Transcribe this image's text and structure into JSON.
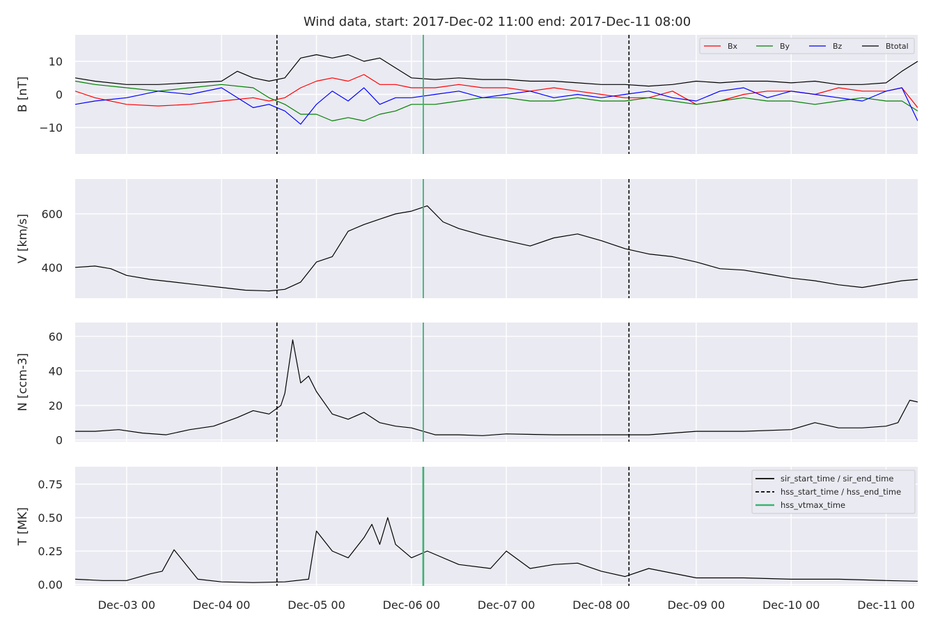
{
  "title": "Wind data, start: 2017-Dec-02 11:00  end: 2017-Dec-11 08:00",
  "time_range": {
    "start": "2017-12-02T11:00",
    "end": "2017-12-11T08:00"
  },
  "x_ticks": [
    "Dec-03 00",
    "Dec-04 00",
    "Dec-05 00",
    "Dec-06 00",
    "Dec-07 00",
    "Dec-08 00",
    "Dec-09 00",
    "Dec-10 00",
    "Dec-11 00"
  ],
  "colors": {
    "panel_bg": "#eaeaf2",
    "grid": "#ffffff",
    "bx": "#ff0000",
    "by": "#008000",
    "bz": "#0000ff",
    "btotal": "#000000",
    "vtmax": "#3cb371",
    "event": "#000000"
  },
  "legend_b": [
    "Bx",
    "By",
    "Bz",
    "Btotal"
  ],
  "legend_events": [
    "sir_start_time / sir_end_time",
    "hss_start_time / hss_end_time",
    "hss_vtmax_time"
  ],
  "chart_data": [
    {
      "type": "line",
      "ylabel": "B [nT]",
      "ylim": [
        -18,
        18
      ],
      "yticks": [
        -10,
        0,
        10
      ],
      "ytick_labels": [
        "−10",
        "0",
        "10"
      ],
      "grid": true,
      "legend_position": "top-right",
      "series": [
        {
          "name": "Bx",
          "t": [
            "2017-12-02T11:00",
            "2017-12-02T16:00",
            "2017-12-03T00:00",
            "2017-12-03T08:00",
            "2017-12-03T16:00",
            "2017-12-04T00:00",
            "2017-12-04T08:00",
            "2017-12-04T12:00",
            "2017-12-04T16:00",
            "2017-12-04T20:00",
            "2017-12-05T00:00",
            "2017-12-05T04:00",
            "2017-12-05T08:00",
            "2017-12-05T12:00",
            "2017-12-05T16:00",
            "2017-12-05T20:00",
            "2017-12-06T00:00",
            "2017-12-06T06:00",
            "2017-12-06T12:00",
            "2017-12-06T18:00",
            "2017-12-07T00:00",
            "2017-12-07T06:00",
            "2017-12-07T12:00",
            "2017-12-07T18:00",
            "2017-12-08T00:00",
            "2017-12-08T06:00",
            "2017-12-08T12:00",
            "2017-12-08T18:00",
            "2017-12-09T00:00",
            "2017-12-09T06:00",
            "2017-12-09T12:00",
            "2017-12-09T18:00",
            "2017-12-10T00:00",
            "2017-12-10T06:00",
            "2017-12-10T12:00",
            "2017-12-10T18:00",
            "2017-12-11T00:00",
            "2017-12-11T04:00",
            "2017-12-11T08:00"
          ],
          "values": [
            1,
            -1,
            -3,
            -3.5,
            -3,
            -2,
            -1,
            -2,
            -1,
            2,
            4,
            5,
            4,
            6,
            3,
            3,
            2,
            2,
            3,
            2,
            2,
            1,
            2,
            1,
            0,
            -1,
            -1,
            1,
            -3,
            -2,
            0,
            1,
            1,
            0,
            2,
            1,
            1,
            2,
            -4
          ]
        },
        {
          "name": "By",
          "t": [
            "2017-12-02T11:00",
            "2017-12-02T16:00",
            "2017-12-03T00:00",
            "2017-12-03T08:00",
            "2017-12-03T16:00",
            "2017-12-04T00:00",
            "2017-12-04T08:00",
            "2017-12-04T12:00",
            "2017-12-04T16:00",
            "2017-12-04T20:00",
            "2017-12-05T00:00",
            "2017-12-05T04:00",
            "2017-12-05T08:00",
            "2017-12-05T12:00",
            "2017-12-05T16:00",
            "2017-12-05T20:00",
            "2017-12-06T00:00",
            "2017-12-06T06:00",
            "2017-12-06T12:00",
            "2017-12-06T18:00",
            "2017-12-07T00:00",
            "2017-12-07T06:00",
            "2017-12-07T12:00",
            "2017-12-07T18:00",
            "2017-12-08T00:00",
            "2017-12-08T06:00",
            "2017-12-08T12:00",
            "2017-12-08T18:00",
            "2017-12-09T00:00",
            "2017-12-09T06:00",
            "2017-12-09T12:00",
            "2017-12-09T18:00",
            "2017-12-10T00:00",
            "2017-12-10T06:00",
            "2017-12-10T12:00",
            "2017-12-10T18:00",
            "2017-12-11T00:00",
            "2017-12-11T04:00",
            "2017-12-11T08:00"
          ],
          "values": [
            4,
            3,
            2,
            1,
            2,
            3,
            2,
            -1,
            -3,
            -6,
            -6,
            -8,
            -7,
            -8,
            -6,
            -5,
            -3,
            -3,
            -2,
            -1,
            -1,
            -2,
            -2,
            -1,
            -2,
            -2,
            -1,
            -2,
            -3,
            -2,
            -1,
            -2,
            -2,
            -3,
            -2,
            -1,
            -2,
            -2,
            -5
          ]
        },
        {
          "name": "Bz",
          "t": [
            "2017-12-02T11:00",
            "2017-12-02T16:00",
            "2017-12-03T00:00",
            "2017-12-03T08:00",
            "2017-12-03T16:00",
            "2017-12-04T00:00",
            "2017-12-04T08:00",
            "2017-12-04T12:00",
            "2017-12-04T16:00",
            "2017-12-04T20:00",
            "2017-12-05T00:00",
            "2017-12-05T04:00",
            "2017-12-05T08:00",
            "2017-12-05T12:00",
            "2017-12-05T16:00",
            "2017-12-05T20:00",
            "2017-12-06T00:00",
            "2017-12-06T06:00",
            "2017-12-06T12:00",
            "2017-12-06T18:00",
            "2017-12-07T00:00",
            "2017-12-07T06:00",
            "2017-12-07T12:00",
            "2017-12-07T18:00",
            "2017-12-08T00:00",
            "2017-12-08T06:00",
            "2017-12-08T12:00",
            "2017-12-08T18:00",
            "2017-12-09T00:00",
            "2017-12-09T06:00",
            "2017-12-09T12:00",
            "2017-12-09T18:00",
            "2017-12-10T00:00",
            "2017-12-10T06:00",
            "2017-12-10T12:00",
            "2017-12-10T18:00",
            "2017-12-11T00:00",
            "2017-12-11T04:00",
            "2017-12-11T08:00"
          ],
          "values": [
            -3,
            -2,
            -1,
            1,
            0,
            2,
            -4,
            -3,
            -5,
            -9,
            -3,
            1,
            -2,
            2,
            -3,
            -1,
            -1,
            0,
            1,
            -1,
            0,
            1,
            -1,
            0,
            -1,
            0,
            1,
            -1,
            -2,
            1,
            2,
            -1,
            1,
            0,
            -1,
            -2,
            1,
            2,
            -8
          ]
        },
        {
          "name": "Btotal",
          "t": [
            "2017-12-02T11:00",
            "2017-12-02T16:00",
            "2017-12-03T00:00",
            "2017-12-03T08:00",
            "2017-12-03T16:00",
            "2017-12-04T00:00",
            "2017-12-04T04:00",
            "2017-12-04T08:00",
            "2017-12-04T12:00",
            "2017-12-04T16:00",
            "2017-12-04T20:00",
            "2017-12-05T00:00",
            "2017-12-05T04:00",
            "2017-12-05T08:00",
            "2017-12-05T12:00",
            "2017-12-05T16:00",
            "2017-12-05T20:00",
            "2017-12-06T00:00",
            "2017-12-06T06:00",
            "2017-12-06T12:00",
            "2017-12-06T18:00",
            "2017-12-07T00:00",
            "2017-12-07T06:00",
            "2017-12-07T12:00",
            "2017-12-07T18:00",
            "2017-12-08T00:00",
            "2017-12-08T06:00",
            "2017-12-08T12:00",
            "2017-12-08T18:00",
            "2017-12-09T00:00",
            "2017-12-09T06:00",
            "2017-12-09T12:00",
            "2017-12-09T18:00",
            "2017-12-10T00:00",
            "2017-12-10T06:00",
            "2017-12-10T12:00",
            "2017-12-10T18:00",
            "2017-12-11T00:00",
            "2017-12-11T04:00",
            "2017-12-11T08:00"
          ],
          "values": [
            5,
            4,
            3,
            3,
            3.5,
            4,
            7,
            5,
            4,
            5,
            11,
            12,
            11,
            12,
            10,
            11,
            8,
            5,
            4.5,
            5,
            4.5,
            4.5,
            4,
            4,
            3.5,
            3,
            3,
            2.5,
            3,
            4,
            3.5,
            4,
            4,
            3.5,
            4,
            3,
            3,
            3.5,
            7,
            10
          ]
        }
      ]
    },
    {
      "type": "line",
      "ylabel": "V [km/s]",
      "ylim": [
        285,
        730
      ],
      "yticks": [
        400,
        600
      ],
      "grid": true,
      "series": [
        {
          "name": "V",
          "t": [
            "2017-12-02T11:00",
            "2017-12-02T16:00",
            "2017-12-02T20:00",
            "2017-12-03T00:00",
            "2017-12-03T06:00",
            "2017-12-03T12:00",
            "2017-12-03T18:00",
            "2017-12-04T00:00",
            "2017-12-04T06:00",
            "2017-12-04T12:00",
            "2017-12-04T16:00",
            "2017-12-04T20:00",
            "2017-12-05T00:00",
            "2017-12-05T04:00",
            "2017-12-05T08:00",
            "2017-12-05T12:00",
            "2017-12-05T16:00",
            "2017-12-05T20:00",
            "2017-12-06T00:00",
            "2017-12-06T04:00",
            "2017-12-06T08:00",
            "2017-12-06T12:00",
            "2017-12-06T18:00",
            "2017-12-07T00:00",
            "2017-12-07T06:00",
            "2017-12-07T12:00",
            "2017-12-07T18:00",
            "2017-12-08T00:00",
            "2017-12-08T06:00",
            "2017-12-08T12:00",
            "2017-12-08T18:00",
            "2017-12-09T00:00",
            "2017-12-09T06:00",
            "2017-12-09T12:00",
            "2017-12-09T18:00",
            "2017-12-10T00:00",
            "2017-12-10T06:00",
            "2017-12-10T12:00",
            "2017-12-10T18:00",
            "2017-12-11T00:00",
            "2017-12-11T04:00",
            "2017-12-11T08:00"
          ],
          "values": [
            400,
            405,
            395,
            370,
            355,
            345,
            335,
            325,
            315,
            312,
            318,
            345,
            420,
            440,
            535,
            560,
            580,
            600,
            610,
            630,
            570,
            545,
            520,
            500,
            480,
            510,
            525,
            500,
            470,
            450,
            440,
            420,
            395,
            390,
            375,
            360,
            350,
            335,
            325,
            340,
            350,
            355
          ]
        }
      ]
    },
    {
      "type": "line",
      "ylabel": "N [ccm-3]",
      "ylim": [
        -1,
        68
      ],
      "yticks": [
        0,
        20,
        40,
        60
      ],
      "grid": true,
      "series": [
        {
          "name": "N",
          "t": [
            "2017-12-02T11:00",
            "2017-12-02T16:00",
            "2017-12-02T22:00",
            "2017-12-03T04:00",
            "2017-12-03T10:00",
            "2017-12-03T16:00",
            "2017-12-03T22:00",
            "2017-12-04T04:00",
            "2017-12-04T08:00",
            "2017-12-04T12:00",
            "2017-12-04T15:00",
            "2017-12-04T16:00",
            "2017-12-04T18:00",
            "2017-12-04T20:00",
            "2017-12-04T22:00",
            "2017-12-05T00:00",
            "2017-12-05T04:00",
            "2017-12-05T08:00",
            "2017-12-05T12:00",
            "2017-12-05T16:00",
            "2017-12-05T20:00",
            "2017-12-06T00:00",
            "2017-12-06T06:00",
            "2017-12-06T12:00",
            "2017-12-06T18:00",
            "2017-12-07T00:00",
            "2017-12-07T12:00",
            "2017-12-08T00:00",
            "2017-12-08T12:00",
            "2017-12-09T00:00",
            "2017-12-09T12:00",
            "2017-12-10T00:00",
            "2017-12-10T06:00",
            "2017-12-10T12:00",
            "2017-12-10T18:00",
            "2017-12-11T00:00",
            "2017-12-11T03:00",
            "2017-12-11T06:00",
            "2017-12-11T08:00"
          ],
          "values": [
            5,
            5,
            6,
            4,
            3,
            6,
            8,
            13,
            17,
            15,
            20,
            27,
            58,
            33,
            37,
            28,
            15,
            12,
            16,
            10,
            8,
            7,
            3,
            3,
            2.5,
            3.5,
            3,
            3,
            3,
            5,
            5,
            6,
            10,
            7,
            7,
            8,
            10,
            23,
            22
          ]
        }
      ]
    },
    {
      "type": "line",
      "ylabel": "T [MK]",
      "ylim": [
        -0.01,
        0.88
      ],
      "yticks": [
        0.0,
        0.25,
        0.5,
        0.75
      ],
      "ytick_labels": [
        "0.00",
        "0.25",
        "0.50",
        "0.75"
      ],
      "grid": true,
      "legend_position": "top-right",
      "series": [
        {
          "name": "T",
          "t": [
            "2017-12-02T11:00",
            "2017-12-02T18:00",
            "2017-12-03T00:00",
            "2017-12-03T06:00",
            "2017-12-03T09:00",
            "2017-12-03T12:00",
            "2017-12-03T18:00",
            "2017-12-04T00:00",
            "2017-12-04T08:00",
            "2017-12-04T16:00",
            "2017-12-04T22:00",
            "2017-12-05T00:00",
            "2017-12-05T04:00",
            "2017-12-05T08:00",
            "2017-12-05T12:00",
            "2017-12-05T14:00",
            "2017-12-05T16:00",
            "2017-12-05T18:00",
            "2017-12-05T20:00",
            "2017-12-06T00:00",
            "2017-12-06T04:00",
            "2017-12-06T12:00",
            "2017-12-06T20:00",
            "2017-12-07T00:00",
            "2017-12-07T06:00",
            "2017-12-07T12:00",
            "2017-12-07T18:00",
            "2017-12-08T00:00",
            "2017-12-08T06:00",
            "2017-12-08T12:00",
            "2017-12-09T00:00",
            "2017-12-09T12:00",
            "2017-12-10T00:00",
            "2017-12-10T12:00",
            "2017-12-11T00:00",
            "2017-12-11T08:00"
          ],
          "values": [
            0.04,
            0.03,
            0.03,
            0.08,
            0.1,
            0.26,
            0.04,
            0.02,
            0.015,
            0.02,
            0.04,
            0.4,
            0.25,
            0.2,
            0.35,
            0.45,
            0.3,
            0.5,
            0.3,
            0.2,
            0.25,
            0.15,
            0.12,
            0.25,
            0.12,
            0.15,
            0.16,
            0.1,
            0.06,
            0.12,
            0.05,
            0.05,
            0.04,
            0.04,
            0.03,
            0.025
          ]
        }
      ]
    }
  ],
  "events": [
    {
      "label": "sir_start_time / sir_end_time",
      "times": []
    },
    {
      "label": "hss_start_time / hss_end_time",
      "times": [
        "2017-12-04T14:00",
        "2017-12-08T07:00"
      ]
    },
    {
      "label": "hss_vtmax_time",
      "times": [
        "2017-12-06T03:00"
      ]
    }
  ]
}
